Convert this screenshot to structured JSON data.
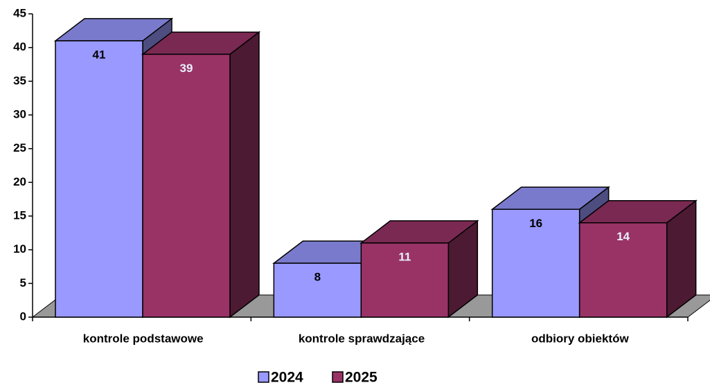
{
  "chart_data": {
    "type": "bar3d",
    "categories": [
      "kontrole podstawowe",
      "kontrole sprawdzające",
      "odbiory obiektów"
    ],
    "series": [
      {
        "name": "2024",
        "color": "#9999ff",
        "values": [
          41,
          8,
          16
        ]
      },
      {
        "name": "2025",
        "color": "#993366",
        "values": [
          39,
          11,
          14
        ]
      }
    ],
    "ylim": [
      0,
      45
    ],
    "yticks": [
      0,
      5,
      10,
      15,
      20,
      25,
      30,
      35,
      40,
      45
    ],
    "legend": "bottom"
  }
}
